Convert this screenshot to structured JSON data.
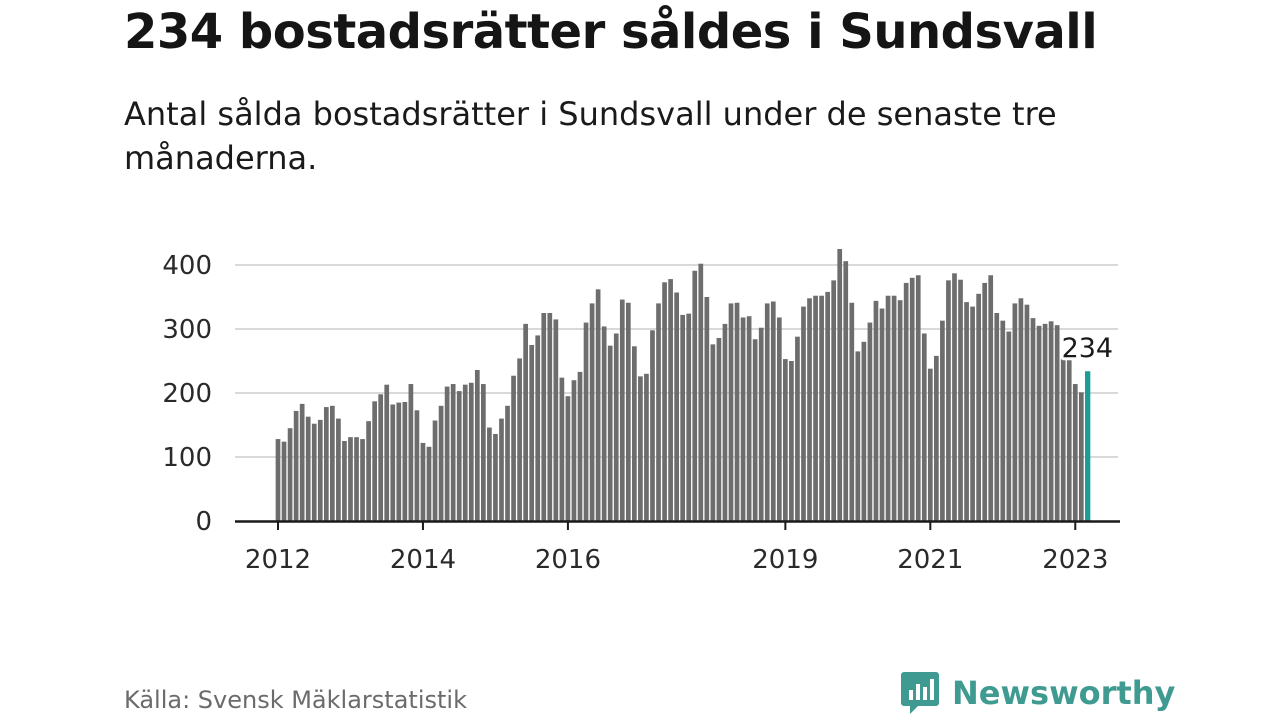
{
  "header": {
    "title": "234 bostadsrätter såldes i Sundsvall",
    "subtitle": "Antal sålda bostadsrätter i Sundsvall under de senaste tre månaderna."
  },
  "footer": {
    "source": "Källa: Svensk Mäklarstatistik",
    "brand": "Newsworthy"
  },
  "colors": {
    "bar": "#6d6d6d",
    "highlight": "#1a9e98",
    "brand": "#3f9a91",
    "grid": "#d9d9d9"
  },
  "chart_data": {
    "type": "bar",
    "title": "234 bostadsrätter såldes i Sundsvall",
    "subtitle": "Antal sålda bostadsrätter i Sundsvall under de senaste tre månaderna.",
    "xlabel": "",
    "ylabel": "",
    "ylim": [
      0,
      430
    ],
    "yticks": [
      0,
      100,
      200,
      300,
      400
    ],
    "grid": true,
    "x_start": "2012-01",
    "x_tick_labels": [
      {
        "label": "2012",
        "month": "2012-01"
      },
      {
        "label": "2014",
        "month": "2014-01"
      },
      {
        "label": "2016",
        "month": "2016-01"
      },
      {
        "label": "2019",
        "month": "2019-01"
      },
      {
        "label": "2021",
        "month": "2021-01"
      },
      {
        "label": "2023",
        "month": "2023-01"
      }
    ],
    "values": [
      128,
      124,
      145,
      172,
      183,
      163,
      152,
      158,
      178,
      180,
      160,
      125,
      131,
      131,
      128,
      156,
      187,
      198,
      213,
      182,
      185,
      186,
      214,
      173,
      122,
      116,
      157,
      180,
      210,
      214,
      203,
      213,
      216,
      236,
      214,
      146,
      136,
      160,
      180,
      227,
      254,
      308,
      275,
      290,
      325,
      325,
      315,
      224,
      195,
      220,
      233,
      310,
      340,
      362,
      304,
      274,
      293,
      346,
      341,
      273,
      226,
      230,
      298,
      340,
      373,
      378,
      357,
      322,
      324,
      391,
      402,
      350,
      276,
      286,
      308,
      340,
      341,
      318,
      320,
      284,
      302,
      340,
      343,
      318,
      253,
      250,
      288,
      335,
      348,
      352,
      352,
      358,
      376,
      425,
      406,
      341,
      265,
      280,
      310,
      344,
      332,
      352,
      352,
      345,
      372,
      380,
      384,
      293,
      238,
      258,
      313,
      376,
      387,
      377,
      342,
      335,
      355,
      372,
      384,
      325,
      313,
      296,
      340,
      348,
      338,
      317,
      305,
      308,
      312,
      306,
      253,
      258,
      214,
      201,
      234
    ],
    "highlight": {
      "index": 134,
      "value": 234,
      "label": "234"
    }
  }
}
